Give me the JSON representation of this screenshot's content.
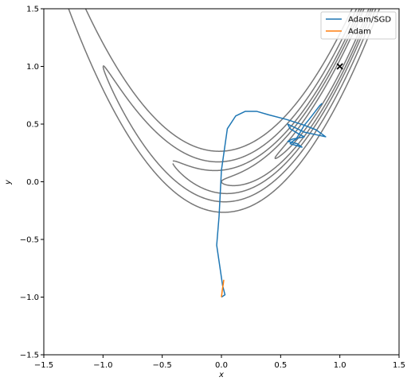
{
  "chart_data": {
    "type": "line",
    "title": "",
    "xlabel": "x",
    "ylabel": "y",
    "xlim": [
      -1.5,
      1.5
    ],
    "ylim": [
      -1.5,
      1.5
    ],
    "xticks": [
      -1.5,
      -1.0,
      -0.5,
      0.0,
      0.5,
      1.0,
      1.5
    ],
    "xtick_labels": [
      "−1.5",
      "−1.0",
      "−0.5",
      "0.0",
      "0.5",
      "1.0",
      "1.5"
    ],
    "yticks": [
      -1.5,
      -1.0,
      -0.5,
      0.0,
      0.5,
      1.0,
      1.5
    ],
    "ytick_labels": [
      "−1.5",
      "−1.0",
      "−0.5",
      "0.0",
      "0.5",
      "1.0",
      "1.5"
    ],
    "grid": false,
    "legend_position": "top-right",
    "contour_color": "#777777",
    "contour_levels": [
      0.3,
      1.0,
      2.0,
      4.0,
      8.0
    ],
    "minimum_marker": {
      "x": 1.0,
      "y": 1.0,
      "marker": "x"
    },
    "series": [
      {
        "name": "Adam/SGD",
        "color": "#1f77b4",
        "points": [
          [
            0.0,
            -1.0
          ],
          [
            0.03,
            -0.98
          ],
          [
            0.01,
            -0.9
          ],
          [
            -0.04,
            -0.55
          ],
          [
            -0.02,
            -0.3
          ],
          [
            0.0,
            0.1
          ],
          [
            0.05,
            0.46
          ],
          [
            0.12,
            0.57
          ],
          [
            0.2,
            0.61
          ],
          [
            0.3,
            0.61
          ],
          [
            0.4,
            0.58
          ],
          [
            0.55,
            0.54
          ],
          [
            0.7,
            0.49
          ],
          [
            0.8,
            0.45
          ],
          [
            0.88,
            0.39
          ],
          [
            0.7,
            0.43
          ],
          [
            0.56,
            0.5
          ],
          [
            0.58,
            0.46
          ],
          [
            0.66,
            0.41
          ],
          [
            0.7,
            0.39
          ],
          [
            0.6,
            0.37
          ],
          [
            0.56,
            0.35
          ],
          [
            0.64,
            0.33
          ],
          [
            0.68,
            0.3
          ],
          [
            0.58,
            0.33
          ],
          [
            0.6,
            0.35
          ],
          [
            0.63,
            0.37
          ],
          [
            0.66,
            0.42
          ],
          [
            0.7,
            0.49
          ],
          [
            0.74,
            0.54
          ],
          [
            0.77,
            0.58
          ],
          [
            0.8,
            0.62
          ],
          [
            0.83,
            0.66
          ],
          [
            0.85,
            0.68
          ]
        ]
      },
      {
        "name": "Adam",
        "color": "#ff7f0e",
        "points": [
          [
            0.0,
            -1.0
          ],
          [
            0.005,
            -0.96
          ],
          [
            0.01,
            -0.92
          ],
          [
            0.015,
            -0.89
          ],
          [
            0.02,
            -0.85
          ]
        ]
      }
    ]
  }
}
